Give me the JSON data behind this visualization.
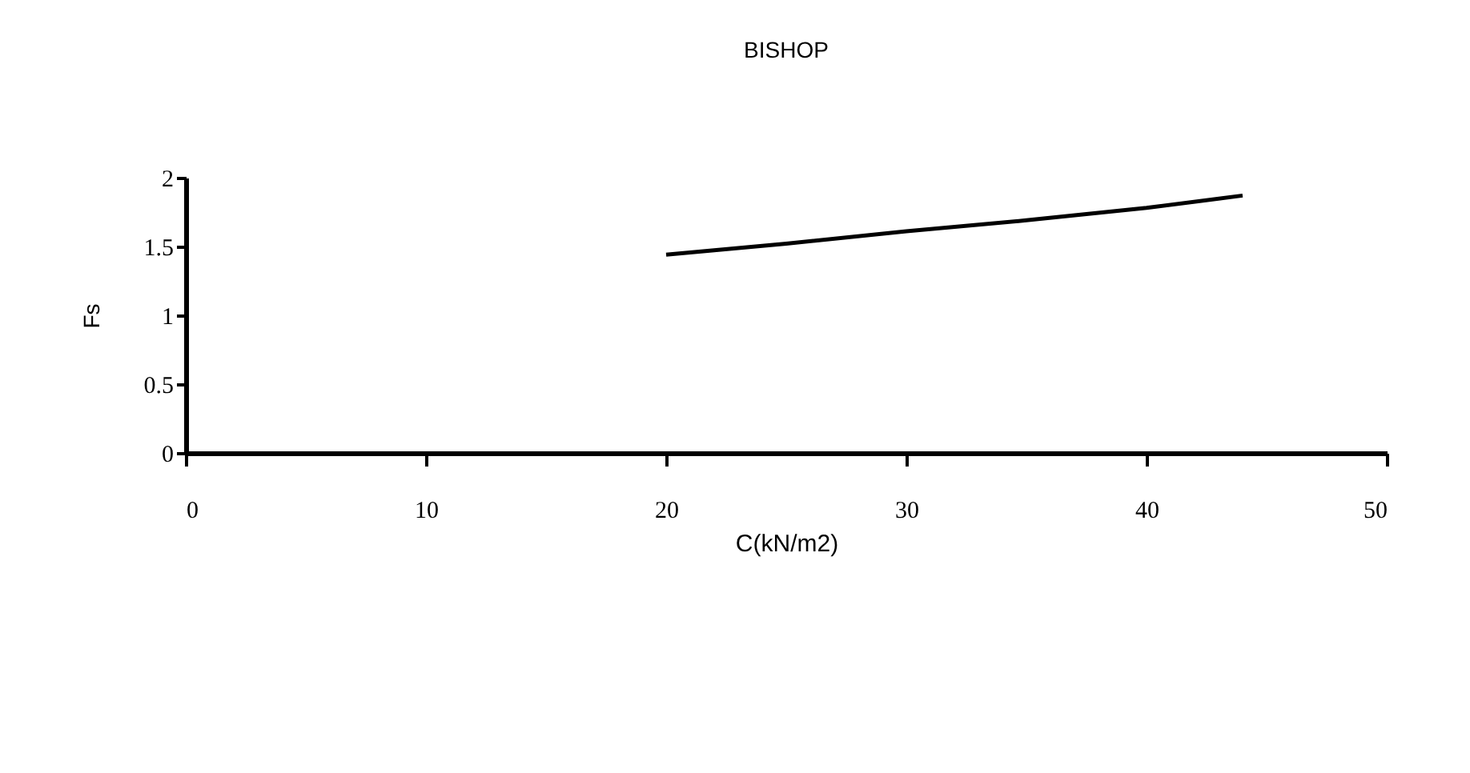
{
  "chart_data": {
    "type": "line",
    "title": "BISHOP",
    "xlabel": "C(kN/m2)",
    "ylabel": "Fs",
    "x": [
      20,
      25,
      30,
      35,
      40,
      44
    ],
    "series": [
      {
        "color": "#000000",
        "values": [
          1.44,
          1.52,
          1.61,
          1.69,
          1.78,
          1.87
        ]
      }
    ],
    "xlim": [
      0,
      50
    ],
    "xticks": [
      0,
      10,
      20,
      30,
      40,
      50
    ],
    "ylim": [
      0,
      2
    ],
    "yticks": [
      0,
      0.5,
      1,
      1.5,
      2
    ],
    "grid": false,
    "legend": false,
    "marker": "none",
    "line_style": "solid"
  }
}
